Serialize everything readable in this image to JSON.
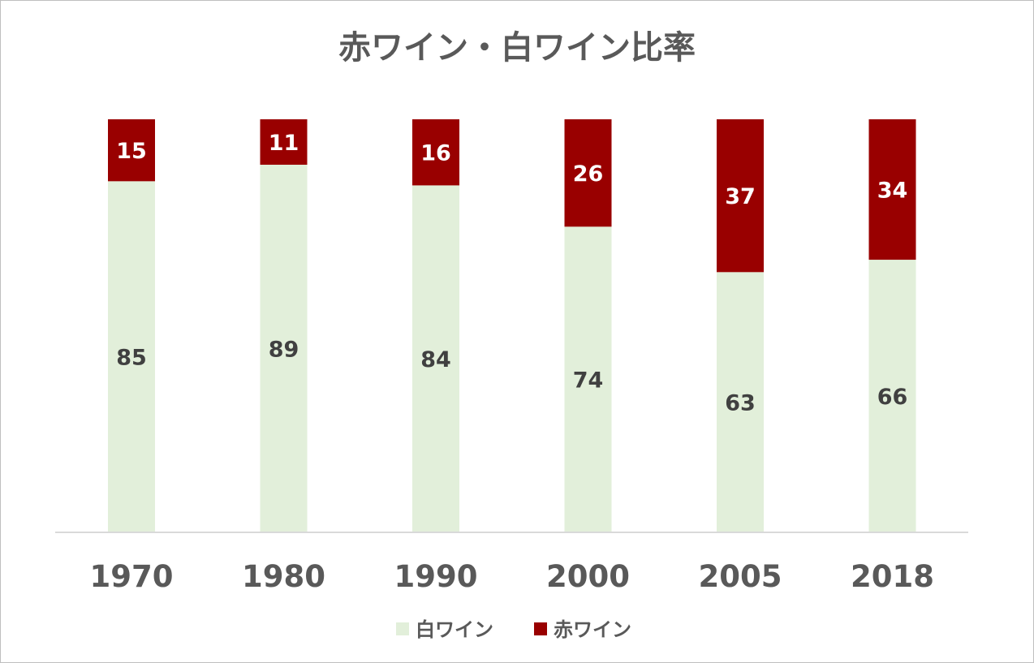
{
  "chart_data": {
    "type": "bar",
    "stacked": true,
    "title": "赤ワイン・白ワイン比率",
    "categories": [
      "1970",
      "1980",
      "1990",
      "2000",
      "2005",
      "2018"
    ],
    "series": [
      {
        "name": "白ワイン",
        "values": [
          85,
          89,
          84,
          74,
          63,
          66
        ],
        "color": "#e2efda",
        "label_color": "#404040"
      },
      {
        "name": "赤ワイン",
        "values": [
          15,
          11,
          16,
          26,
          37,
          34
        ],
        "color": "#990000",
        "label_color": "#ffffff"
      }
    ],
    "ylim": [
      0,
      100
    ],
    "grid": false,
    "legend_position": "bottom",
    "axis_line_color": "#d9d9d9"
  }
}
